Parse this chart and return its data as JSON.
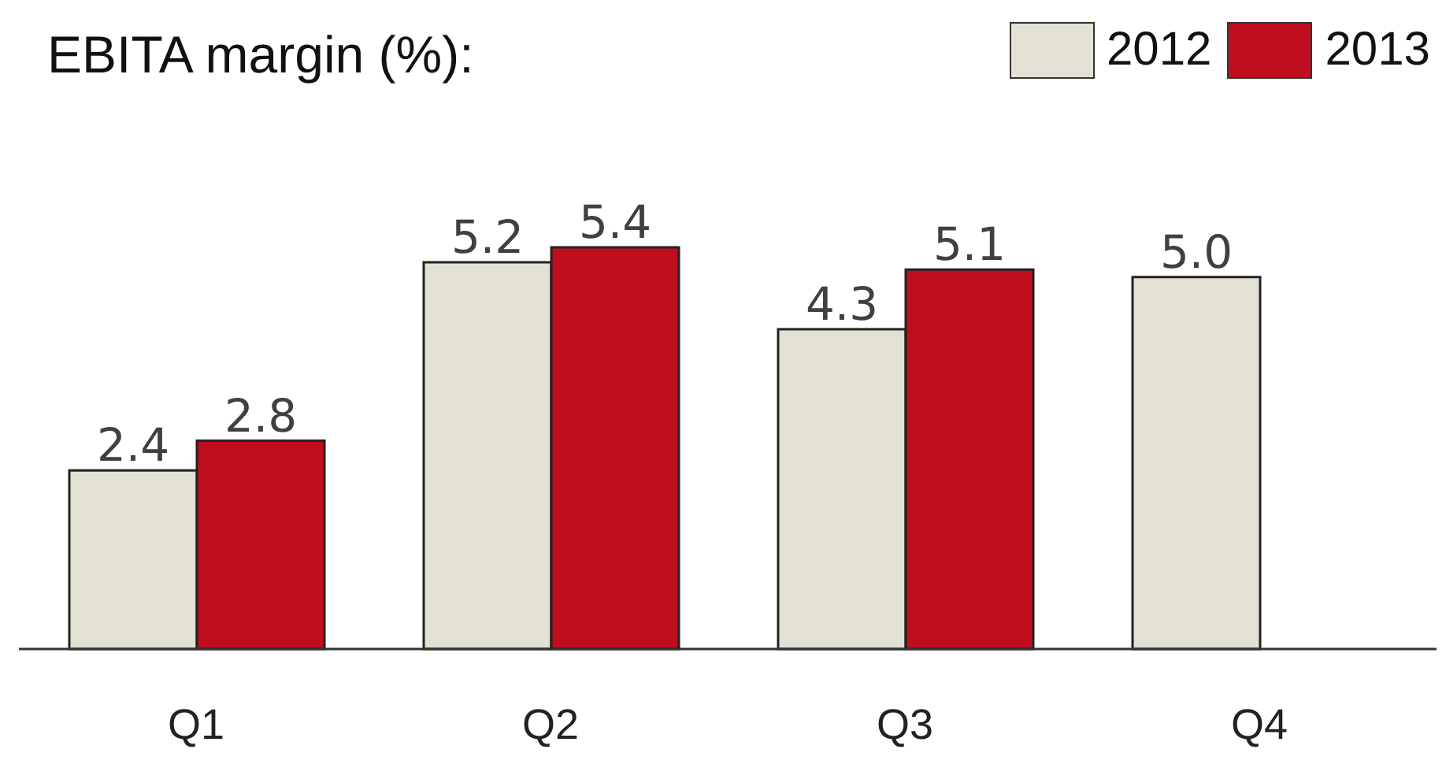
{
  "chart_data": {
    "type": "bar",
    "title": "EBITA margin (%):",
    "categories": [
      "Q1",
      "Q2",
      "Q3",
      "Q4"
    ],
    "series": [
      {
        "name": "2012",
        "color": "#e3e0d4",
        "values": [
          2.4,
          5.2,
          4.3,
          5.0
        ],
        "value_labels": [
          "2.4",
          "5.2",
          "4.3",
          "5.0"
        ]
      },
      {
        "name": "2013",
        "color": "#c00d1e",
        "values": [
          2.8,
          5.4,
          5.1,
          null
        ],
        "value_labels": [
          "2.8",
          "5.4",
          "5.1",
          null
        ]
      }
    ],
    "legend": "top right",
    "grid": false
  }
}
